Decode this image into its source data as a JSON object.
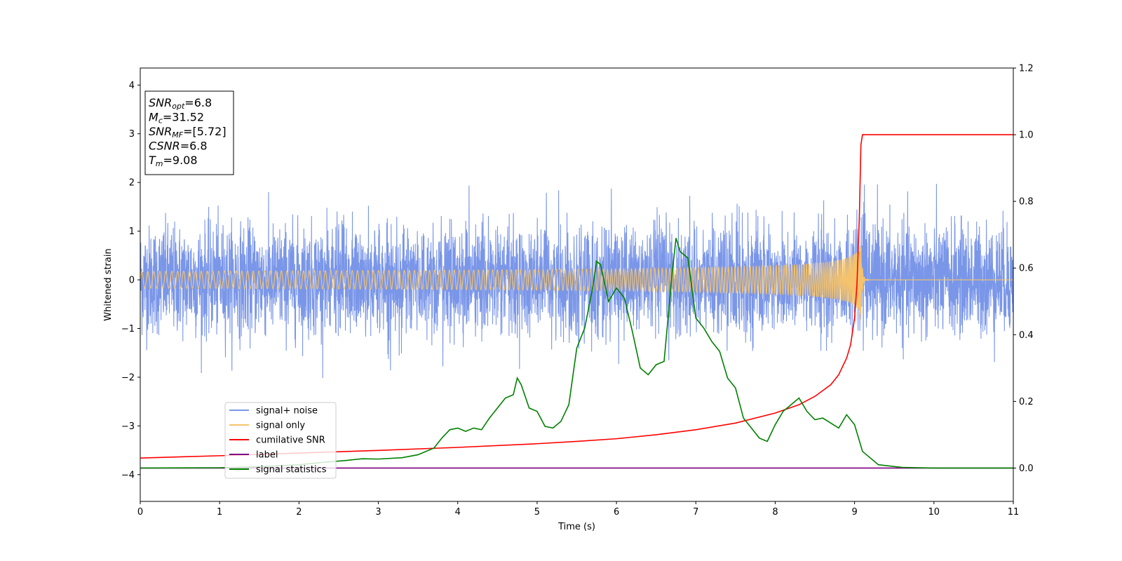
{
  "chart_data": {
    "type": "line",
    "title": "",
    "xlabel": "Time (s)",
    "ylabel": "Whitened strain",
    "xlim": [
      0,
      11
    ],
    "ylim_left": [
      -4.55,
      4.35
    ],
    "ylim_right": [
      -0.1,
      1.2
    ],
    "x_ticks": [
      "0",
      "1",
      "2",
      "3",
      "4",
      "5",
      "6",
      "7",
      "8",
      "9",
      "10",
      "11"
    ],
    "y_left_ticks": [
      "−4",
      "−3",
      "−2",
      "−1",
      "0",
      "1",
      "2",
      "3",
      "4"
    ],
    "y_right_ticks": [
      "0.0",
      "0.2",
      "0.4",
      "0.6",
      "0.8",
      "1.0",
      "1.2"
    ],
    "grid": false,
    "legend_position": "lower-left",
    "annotation": [
      {
        "base": "SNR",
        "sub": "opt",
        "value": "=6.8"
      },
      {
        "base": "M",
        "sub": "c",
        "value": "=31.52"
      },
      {
        "base": "SNR",
        "sub": "MF",
        "value": "=[5.72]"
      },
      {
        "base": "CSNR",
        "sub": "",
        "value": "=6.8"
      },
      {
        "base": "T",
        "sub": "m",
        "value": "=9.08"
      }
    ],
    "series": [
      {
        "name": "signal+ noise",
        "color": "#7a96e8",
        "axis": "left",
        "kind": "noise",
        "noise_std": 0.55,
        "noise_peak": 2.1
      },
      {
        "name": "signal only",
        "color": "#f5c36b",
        "axis": "left",
        "kind": "chirp",
        "merger_time": 9.08,
        "peak_amplitude": 0.85
      },
      {
        "name": "cumilative SNR",
        "color": "#ff0000",
        "axis": "right",
        "x": [
          0,
          1,
          2,
          3,
          4,
          5,
          5.5,
          6,
          6.5,
          7,
          7.5,
          8,
          8.3,
          8.5,
          8.7,
          8.8,
          8.9,
          8.95,
          9.0,
          9.03,
          9.06,
          9.08,
          9.1,
          10,
          11
        ],
        "y": [
          0.03,
          0.037,
          0.045,
          0.053,
          0.062,
          0.073,
          0.08,
          0.088,
          0.1,
          0.115,
          0.135,
          0.165,
          0.19,
          0.215,
          0.25,
          0.28,
          0.33,
          0.37,
          0.45,
          0.55,
          0.75,
          0.97,
          1.0,
          1.0,
          1.0
        ]
      },
      {
        "name": "label",
        "color": "#800080",
        "axis": "right",
        "x": [
          0,
          11
        ],
        "y": [
          0.0,
          0.0
        ]
      },
      {
        "name": "signal statistics",
        "color": "#008000",
        "axis": "right",
        "x": [
          0,
          1,
          1.5,
          2,
          2.3,
          2.6,
          2.8,
          3.0,
          3.3,
          3.5,
          3.7,
          3.8,
          3.9,
          4.0,
          4.1,
          4.2,
          4.3,
          4.4,
          4.5,
          4.6,
          4.7,
          4.75,
          4.8,
          4.9,
          5.0,
          5.1,
          5.2,
          5.3,
          5.4,
          5.5,
          5.6,
          5.7,
          5.75,
          5.8,
          5.9,
          6.0,
          6.1,
          6.2,
          6.3,
          6.4,
          6.5,
          6.6,
          6.7,
          6.75,
          6.8,
          6.9,
          7.0,
          7.1,
          7.2,
          7.3,
          7.4,
          7.5,
          7.6,
          7.7,
          7.8,
          7.9,
          8.0,
          8.1,
          8.2,
          8.3,
          8.4,
          8.5,
          8.6,
          8.7,
          8.8,
          8.9,
          9.0,
          9.1,
          9.3,
          9.6,
          10,
          11
        ],
        "y": [
          0.0,
          0.001,
          0.004,
          0.01,
          0.017,
          0.023,
          0.028,
          0.027,
          0.031,
          0.04,
          0.06,
          0.09,
          0.115,
          0.12,
          0.11,
          0.12,
          0.115,
          0.15,
          0.18,
          0.21,
          0.22,
          0.27,
          0.25,
          0.18,
          0.17,
          0.125,
          0.12,
          0.14,
          0.19,
          0.36,
          0.42,
          0.54,
          0.62,
          0.61,
          0.5,
          0.54,
          0.51,
          0.41,
          0.3,
          0.28,
          0.31,
          0.32,
          0.58,
          0.69,
          0.65,
          0.63,
          0.45,
          0.42,
          0.38,
          0.35,
          0.27,
          0.24,
          0.15,
          0.12,
          0.09,
          0.08,
          0.13,
          0.17,
          0.19,
          0.21,
          0.17,
          0.145,
          0.15,
          0.135,
          0.12,
          0.16,
          0.13,
          0.05,
          0.01,
          0.002,
          0.0,
          0.0
        ]
      }
    ]
  }
}
